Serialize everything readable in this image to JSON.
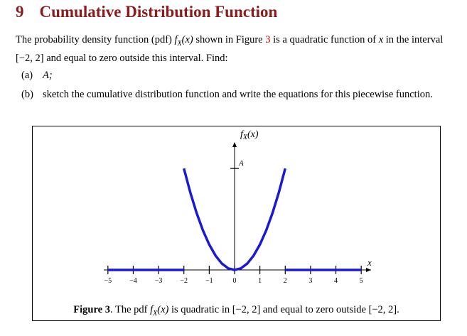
{
  "section": {
    "number": "9",
    "title": "Cumulative Distribution Function"
  },
  "intro": [
    "The probability density function (pdf) ",
    "f",
    "X",
    "(x)",
    " shown in Figure ",
    "3",
    " is a quadratic function of ",
    "x",
    " in the interval [−2, 2] and equal to zero outside this interval. Find:"
  ],
  "items": [
    {
      "label": "(a)",
      "text": "A;"
    },
    {
      "label": "(b)",
      "text": "sketch the cumulative distribution function and write the equations for this piecewise function."
    }
  ],
  "figure": {
    "type": "line",
    "y_label": [
      "f",
      "X",
      "(x)"
    ],
    "x_label": "x",
    "xlim": [
      -5.5,
      5.5
    ],
    "ylim": [
      0,
      1.4
    ],
    "xticks": [
      {
        "value": -5,
        "label": "−5"
      },
      {
        "value": -4,
        "label": "−4"
      },
      {
        "value": -3,
        "label": "−3"
      },
      {
        "value": -2,
        "label": "−2"
      },
      {
        "value": -1,
        "label": "−1"
      },
      0,
      1,
      2,
      3,
      4,
      5
    ],
    "yticks": [
      {
        "value": 1,
        "label": "A"
      }
    ],
    "color": "#1a1ad6",
    "series": [
      {
        "x": [
          -5,
          -2
        ],
        "y": [
          0,
          0
        ]
      },
      {
        "x": [
          -2,
          -1.75,
          -1.5,
          -1.25,
          -1,
          -0.75,
          -0.5,
          -0.25,
          0,
          0.25,
          0.5,
          0.75,
          1,
          1.25,
          1.5,
          1.75,
          2
        ],
        "y": [
          1,
          0.7656,
          0.5625,
          0.3906,
          0.25,
          0.1406,
          0.0625,
          0.0156,
          0,
          0.0156,
          0.0625,
          0.1406,
          0.25,
          0.3906,
          0.5625,
          0.7656,
          1
        ]
      },
      {
        "x": [
          2,
          5
        ],
        "y": [
          0,
          0
        ]
      }
    ],
    "caption": [
      "Figure 3",
      ". The pdf ",
      "f",
      "X",
      "(x)",
      " is quadratic in [−2, 2] and equal to zero outside [−2, 2]."
    ]
  }
}
